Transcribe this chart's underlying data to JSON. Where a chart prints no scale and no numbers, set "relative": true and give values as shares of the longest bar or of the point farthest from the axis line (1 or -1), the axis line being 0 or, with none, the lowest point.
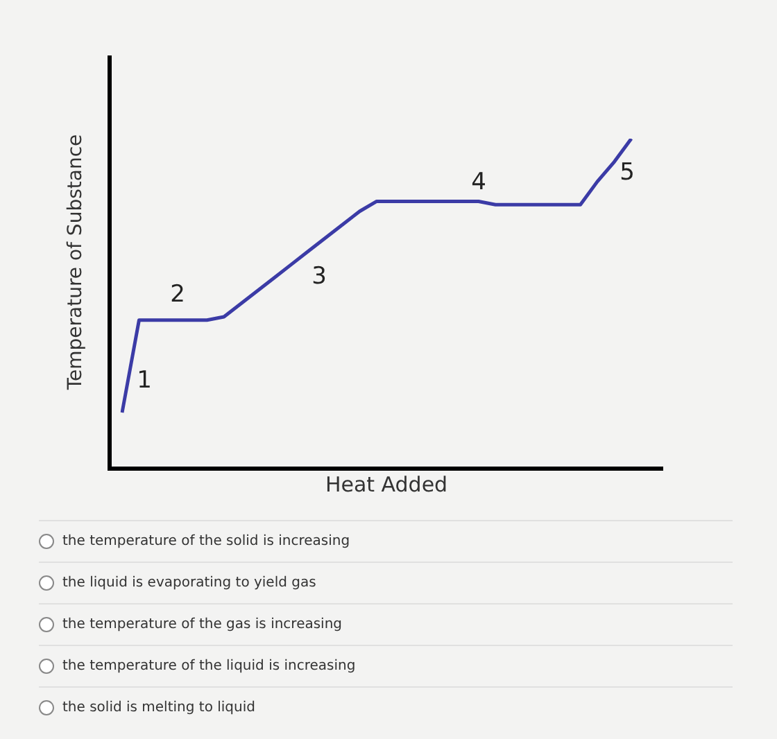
{
  "chart_data": {
    "type": "line",
    "relative": true,
    "xlabel": "Heat Added",
    "ylabel": "Temperature of Substance",
    "categories": [
      null,
      null,
      null,
      null,
      null,
      null,
      null,
      null,
      null,
      null,
      null,
      null,
      null,
      null,
      null,
      null,
      null,
      null,
      null,
      null,
      null,
      null,
      null,
      null,
      null,
      null,
      null,
      null,
      null,
      null,
      null
    ],
    "series": [
      {
        "color": "#3b3ba6",
        "values": [
          0.17,
          0.45,
          0.45,
          0.45,
          0.45,
          0.45,
          0.46,
          0.5,
          0.54,
          0.58,
          0.62,
          0.66,
          0.7,
          0.74,
          0.78,
          0.81,
          0.81,
          0.81,
          0.81,
          0.81,
          0.81,
          0.81,
          0.8,
          0.8,
          0.8,
          0.8,
          0.8,
          0.8,
          0.87,
          0.93,
          1
        ]
      }
    ],
    "marker": "none",
    "line_style": "solid",
    "annotations": [
      "1",
      "2",
      "3",
      "4",
      "5",
      "the temperature of the solid is increasing",
      "the liquid is evaporating to yield gas",
      "the temperature of the gas is increasing",
      "the temperature of the liquid is increasing",
      "the solid is melting to liquid"
    ]
  }
}
